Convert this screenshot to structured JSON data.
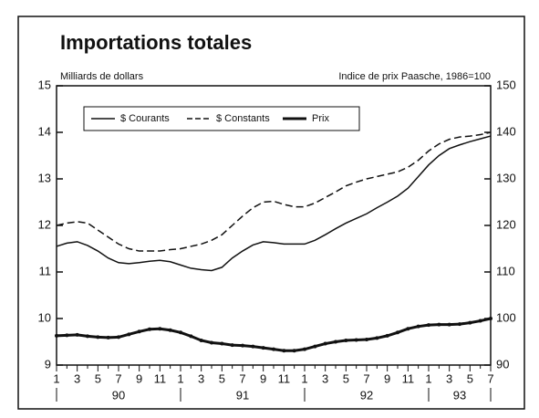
{
  "chart_data": {
    "type": "line",
    "title": "Importations totales",
    "y_label": "Milliards de dollars",
    "y2_label": "Indice de prix Paasche, 1986=100",
    "categories": [
      "1",
      null,
      "3",
      null,
      "5",
      null,
      "7",
      null,
      "9",
      null,
      "11",
      null,
      "1",
      null,
      "3",
      null,
      "5",
      null,
      "7",
      null,
      "9",
      null,
      "11",
      null,
      "1",
      null,
      "3",
      null,
      "5",
      null,
      "7",
      null,
      "9",
      null,
      "11",
      null,
      "1",
      null,
      "3",
      null,
      "5",
      null,
      "7"
    ],
    "year_labels": [
      "90",
      "91",
      "92",
      "93"
    ],
    "ylim": [
      9,
      15
    ],
    "yticks": [
      9,
      10,
      11,
      12,
      13,
      14,
      15
    ],
    "y2lim": [
      90,
      150
    ],
    "y2ticks": [
      90,
      100,
      110,
      120,
      130,
      140,
      150
    ],
    "series": [
      {
        "name": "$ Courants",
        "color": "#111111",
        "style": "solid",
        "width": 1.5,
        "values": [
          11.55,
          11.62,
          11.65,
          11.57,
          11.45,
          11.3,
          11.2,
          11.18,
          11.2,
          11.23,
          11.25,
          11.22,
          11.15,
          11.08,
          11.05,
          11.03,
          11.1,
          11.3,
          11.45,
          11.58,
          11.65,
          11.63,
          11.6,
          11.6,
          11.6,
          11.68,
          11.8,
          11.93,
          12.05,
          12.15,
          12.25,
          12.38,
          12.5,
          12.63,
          12.8,
          13.05,
          13.3,
          13.5,
          13.65,
          13.73,
          13.8,
          13.86,
          13.92
        ]
      },
      {
        "name": "$ Constants",
        "color": "#111111",
        "style": "dashed",
        "width": 1.5,
        "values": [
          12.0,
          12.05,
          12.08,
          12.05,
          11.9,
          11.75,
          11.6,
          11.5,
          11.45,
          11.45,
          11.45,
          11.48,
          11.5,
          11.55,
          11.6,
          11.68,
          11.8,
          12.0,
          12.2,
          12.38,
          12.5,
          12.52,
          12.45,
          12.4,
          12.4,
          12.48,
          12.6,
          12.72,
          12.85,
          12.93,
          13.0,
          13.05,
          13.1,
          13.15,
          13.25,
          13.4,
          13.6,
          13.75,
          13.85,
          13.9,
          13.92,
          13.95,
          14.0
        ]
      },
      {
        "name": "Prix",
        "color": "#111111",
        "style": "solid",
        "width": 3,
        "axis": "y2",
        "markers": true,
        "values": [
          96.3,
          96.4,
          96.5,
          96.2,
          96.0,
          95.9,
          96.0,
          96.6,
          97.2,
          97.7,
          97.8,
          97.5,
          97.0,
          96.2,
          95.3,
          94.8,
          94.6,
          94.3,
          94.2,
          94.0,
          93.7,
          93.4,
          93.1,
          93.1,
          93.4,
          94.0,
          94.6,
          95.0,
          95.3,
          95.4,
          95.5,
          95.8,
          96.3,
          97.0,
          97.8,
          98.3,
          98.6,
          98.7,
          98.7,
          98.8,
          99.1,
          99.5,
          100.0
        ]
      }
    ]
  }
}
